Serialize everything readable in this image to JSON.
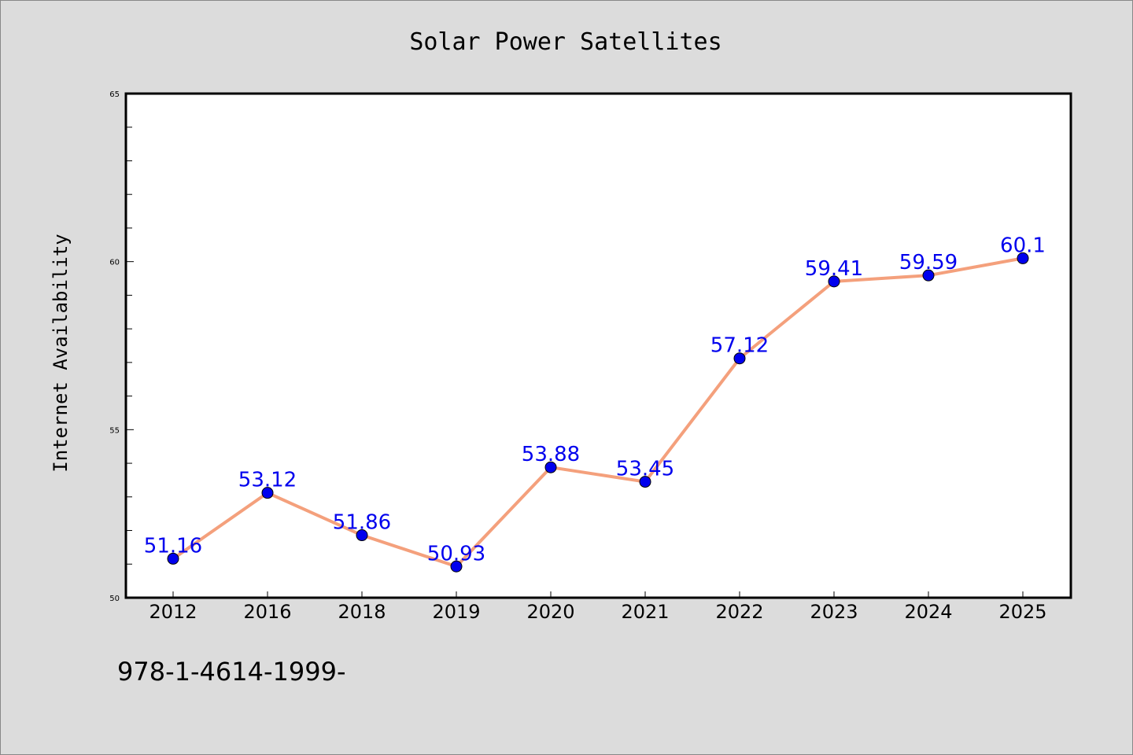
{
  "chart_data": {
    "type": "line",
    "title": "Solar Power Satellites",
    "xlabel": "",
    "ylabel": "Internet Availability",
    "categories": [
      "2012",
      "2016",
      "2018",
      "2019",
      "2020",
      "2021",
      "2022",
      "2023",
      "2024",
      "2025"
    ],
    "series": [
      {
        "values": [
          51.16,
          53.12,
          51.86,
          50.93,
          53.88,
          53.45,
          57.12,
          59.41,
          59.59,
          60.1
        ],
        "data_labels": [
          "51.16",
          "53.12",
          "51.86",
          "50.93",
          "53.88",
          "53.45",
          "57.12",
          "59.41",
          "59.59",
          "60.1"
        ],
        "line_color": "#f4a07c",
        "marker_color": "#0000ee"
      }
    ],
    "ylim": [
      50,
      65
    ],
    "y_major_ticks": [
      50,
      55,
      60,
      65
    ],
    "y_minor_step": 1,
    "grid": false,
    "label_color": "#0000ee"
  },
  "footer": {
    "text": "978-1-4614-1999-"
  }
}
